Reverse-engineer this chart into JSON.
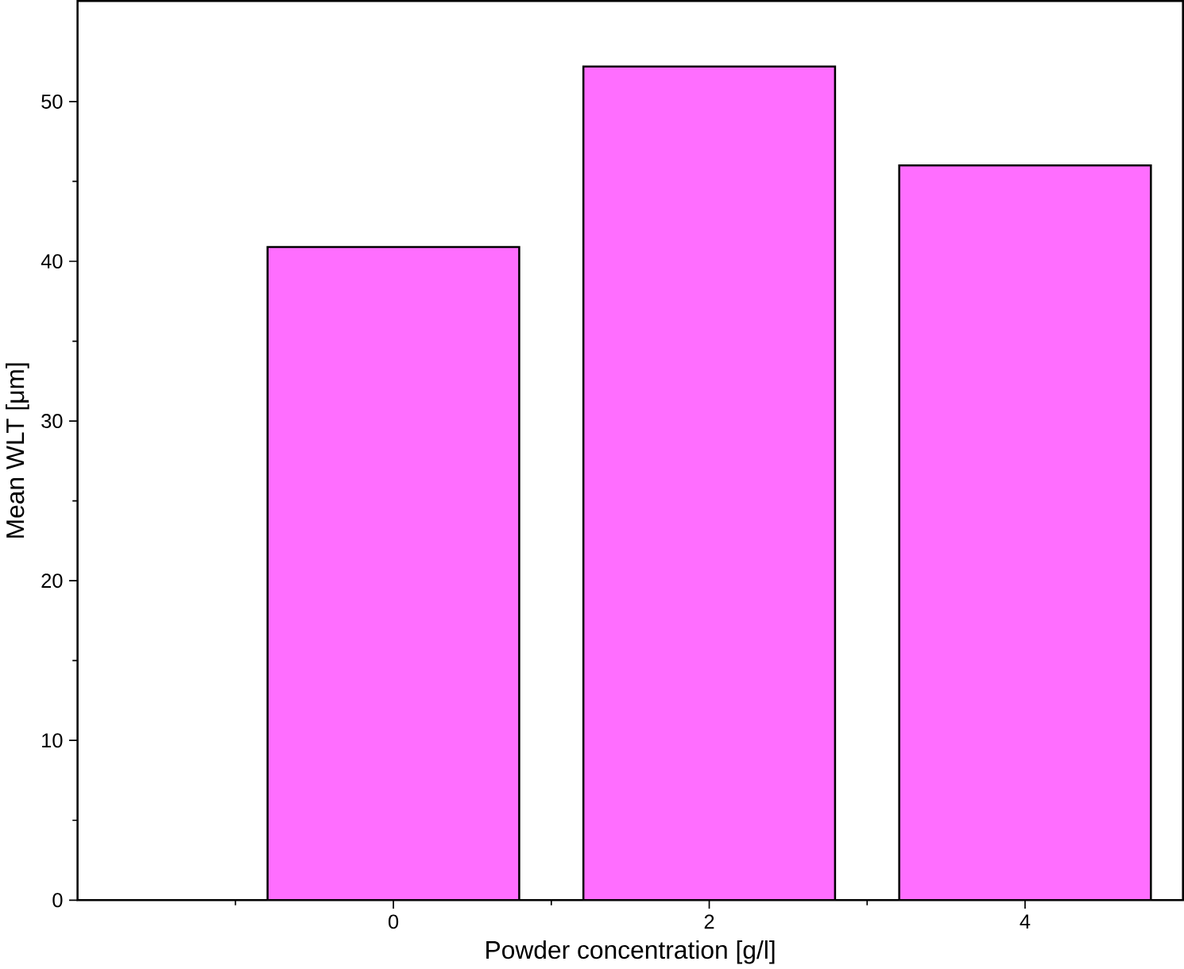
{
  "chart_data": {
    "type": "bar",
    "xlabel": "Powder concentration [g/l]",
    "ylabel": "Mean WLT [μm]",
    "categories": [
      "0",
      "2",
      "4"
    ],
    "values": [
      40.9,
      52.2,
      46.0
    ],
    "color": "#ff6eff",
    "ylim": [
      0,
      56.3
    ],
    "yticks": [
      0,
      10,
      20,
      30,
      40,
      50
    ]
  }
}
